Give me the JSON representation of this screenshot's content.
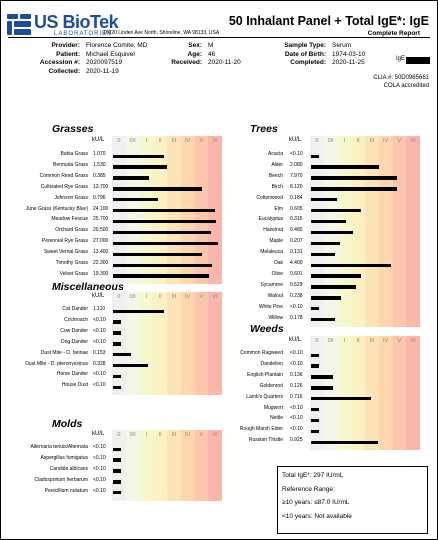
{
  "brand": {
    "name": "US BioTek",
    "sub": "LABORATORIES",
    "address": "16020 Linden Ave North, Shoreline, WA 98133, USA"
  },
  "report": {
    "title": "50 Inhalant Panel + Total IgE*: IgE",
    "subtitle": "Complete Report"
  },
  "patient": {
    "provider_label": "Provider:",
    "provider": "Florence Comite, MD",
    "patient_label": "Patient:",
    "patient": "Michael Esquivel",
    "accession_label": "Accession #:",
    "accession": "2020097519",
    "collected_label": "Collected:",
    "collected": "2020-11-19",
    "sex_label": "Sex:",
    "sex": "M",
    "age_label": "Age:",
    "age": "46",
    "received_label": "Received:",
    "received": "2020-11-20",
    "sample_label": "Sample Type:",
    "sample": "Serum",
    "dob_label": "Date of Birth:",
    "dob": "1974-03-10",
    "completed_label": "Completed:",
    "completed": "2020-11-25",
    "ige_tag": "IgE"
  },
  "clia": {
    "line1": "CLIA #: 50D0965661",
    "line2": "COLA accredited"
  },
  "class_labels": [
    "0",
    "0/I",
    "I",
    "II",
    "III",
    "IV",
    "V",
    "VI"
  ],
  "unit_label": "kU/L",
  "sections": {
    "grasses": {
      "title": "Grasses",
      "rows": [
        {
          "name": "Bahia Grass",
          "value": "1.070",
          "level": 0.47
        },
        {
          "name": "Bermuda Grass",
          "value": "1.530",
          "level": 0.5
        },
        {
          "name": "Common Reed Grass",
          "value": "0.385",
          "level": 0.33
        },
        {
          "name": "Cultivated Rye Grass",
          "value": "13.700",
          "level": 0.82
        },
        {
          "name": "Johnson Grass",
          "value": "0.796",
          "level": 0.42
        },
        {
          "name": "June Grass (Kentucky Blue)",
          "value": "24.100",
          "level": 0.94
        },
        {
          "name": "Meadow Fescue",
          "value": "25.700",
          "level": 0.95
        },
        {
          "name": "Orchard Grass",
          "value": "20.500",
          "level": 0.91
        },
        {
          "name": "Perennial Rye Grass",
          "value": "27.000",
          "level": 0.97
        },
        {
          "name": "Sweet Vernal Grass",
          "value": "13.400",
          "level": 0.82
        },
        {
          "name": "Timothy Grass",
          "value": "22.300",
          "level": 0.92
        },
        {
          "name": "Velvet Grass",
          "value": "19.300",
          "level": 0.89
        }
      ]
    },
    "trees": {
      "title": "Trees",
      "rows": [
        {
          "name": "Acacia",
          "value": "<0.10",
          "level": 0.07
        },
        {
          "name": "Alder",
          "value": "2.080",
          "level": 0.63
        },
        {
          "name": "Beech",
          "value": "7.970",
          "level": 0.8
        },
        {
          "name": "Birch",
          "value": "8.120",
          "level": 0.8
        },
        {
          "name": "Cottonwood",
          "value": "0.184",
          "level": 0.24
        },
        {
          "name": "Elm",
          "value": "0.605",
          "level": 0.46
        },
        {
          "name": "Eucalyptus",
          "value": "0.315",
          "level": 0.32
        },
        {
          "name": "Hazelnut",
          "value": "0.480",
          "level": 0.39
        },
        {
          "name": "Maple",
          "value": "0.207",
          "level": 0.27
        },
        {
          "name": "Melaleuca",
          "value": "0.131",
          "level": 0.22
        },
        {
          "name": "Oak",
          "value": "4.400",
          "level": 0.74
        },
        {
          "name": "Olive",
          "value": "0.601",
          "level": 0.46
        },
        {
          "name": "Sycamore",
          "value": "0.529",
          "level": 0.42
        },
        {
          "name": "Walnut",
          "value": "0.238",
          "level": 0.28
        },
        {
          "name": "White Pine",
          "value": "<0.10",
          "level": 0.07
        },
        {
          "name": "Willow",
          "value": "0.178",
          "level": 0.22
        }
      ]
    },
    "misc": {
      "title": "Miscellaneous",
      "rows": [
        {
          "name": "Cat Dander",
          "value": "1.110",
          "level": 0.47
        },
        {
          "name": "Cockroach",
          "value": "<0.10",
          "level": 0.07
        },
        {
          "name": "Cow Dander",
          "value": "<0.10",
          "level": 0.07
        },
        {
          "name": "Dog Dander",
          "value": "<0.10",
          "level": 0.07
        },
        {
          "name": "Dust Mite - D. farinae",
          "value": "0.153",
          "level": 0.17
        },
        {
          "name": "Dust Mite - D. pteronyssinus",
          "value": "0.328",
          "level": 0.32
        },
        {
          "name": "Horse Dander",
          "value": "<0.10",
          "level": 0.07
        },
        {
          "name": "House Dust",
          "value": "<0.10",
          "level": 0.07
        }
      ]
    },
    "molds": {
      "title": "Molds",
      "rows": [
        {
          "name": "Alternaria tenuis/Alternata",
          "value": "<0.10",
          "level": 0.07
        },
        {
          "name": "Aspergillus fumigatus",
          "value": "<0.10",
          "level": 0.07
        },
        {
          "name": "Candida albicans",
          "value": "<0.10",
          "level": 0.07
        },
        {
          "name": "Cladosporium herbarum",
          "value": "<0.10",
          "level": 0.07
        },
        {
          "name": "Penicillium notatum",
          "value": "<0.10",
          "level": 0.07
        }
      ]
    },
    "weeds": {
      "title": "Weeds",
      "rows": [
        {
          "name": "Common Ragweed",
          "value": "<0.10",
          "level": 0.07
        },
        {
          "name": "Dandelion",
          "value": "<0.10",
          "level": 0.07
        },
        {
          "name": "English Plantain",
          "value": "0.136",
          "level": 0.2
        },
        {
          "name": "Goldenrod",
          "value": "0.126",
          "level": 0.2
        },
        {
          "name": "Lamb's Quarters",
          "value": "0.716",
          "level": 0.56
        },
        {
          "name": "Mugwort",
          "value": "<0.10",
          "level": 0.07
        },
        {
          "name": "Nettle",
          "value": "<0.10",
          "level": 0.07
        },
        {
          "name": "Rough Marsh Elder",
          "value": "<0.10",
          "level": 0.07
        },
        {
          "name": "Russian Thistle",
          "value": "0.925",
          "level": 0.62
        }
      ]
    }
  },
  "summary": {
    "total": "Total IgE*: 297 IU/mL",
    "range_title": "Reference Range:",
    "range_adult": "≥10 years: ≤87.0 IU/mL",
    "range_child": "<10 years: Not available"
  },
  "colors": {
    "brand": "#1b4e9c",
    "band": [
      "#f0f0f0",
      "#f2f7e6",
      "#f5f7cc",
      "#fbf1c2",
      "#fde4b6",
      "#fdd6ae",
      "#fcc6ac",
      "#fbb6ac"
    ]
  }
}
